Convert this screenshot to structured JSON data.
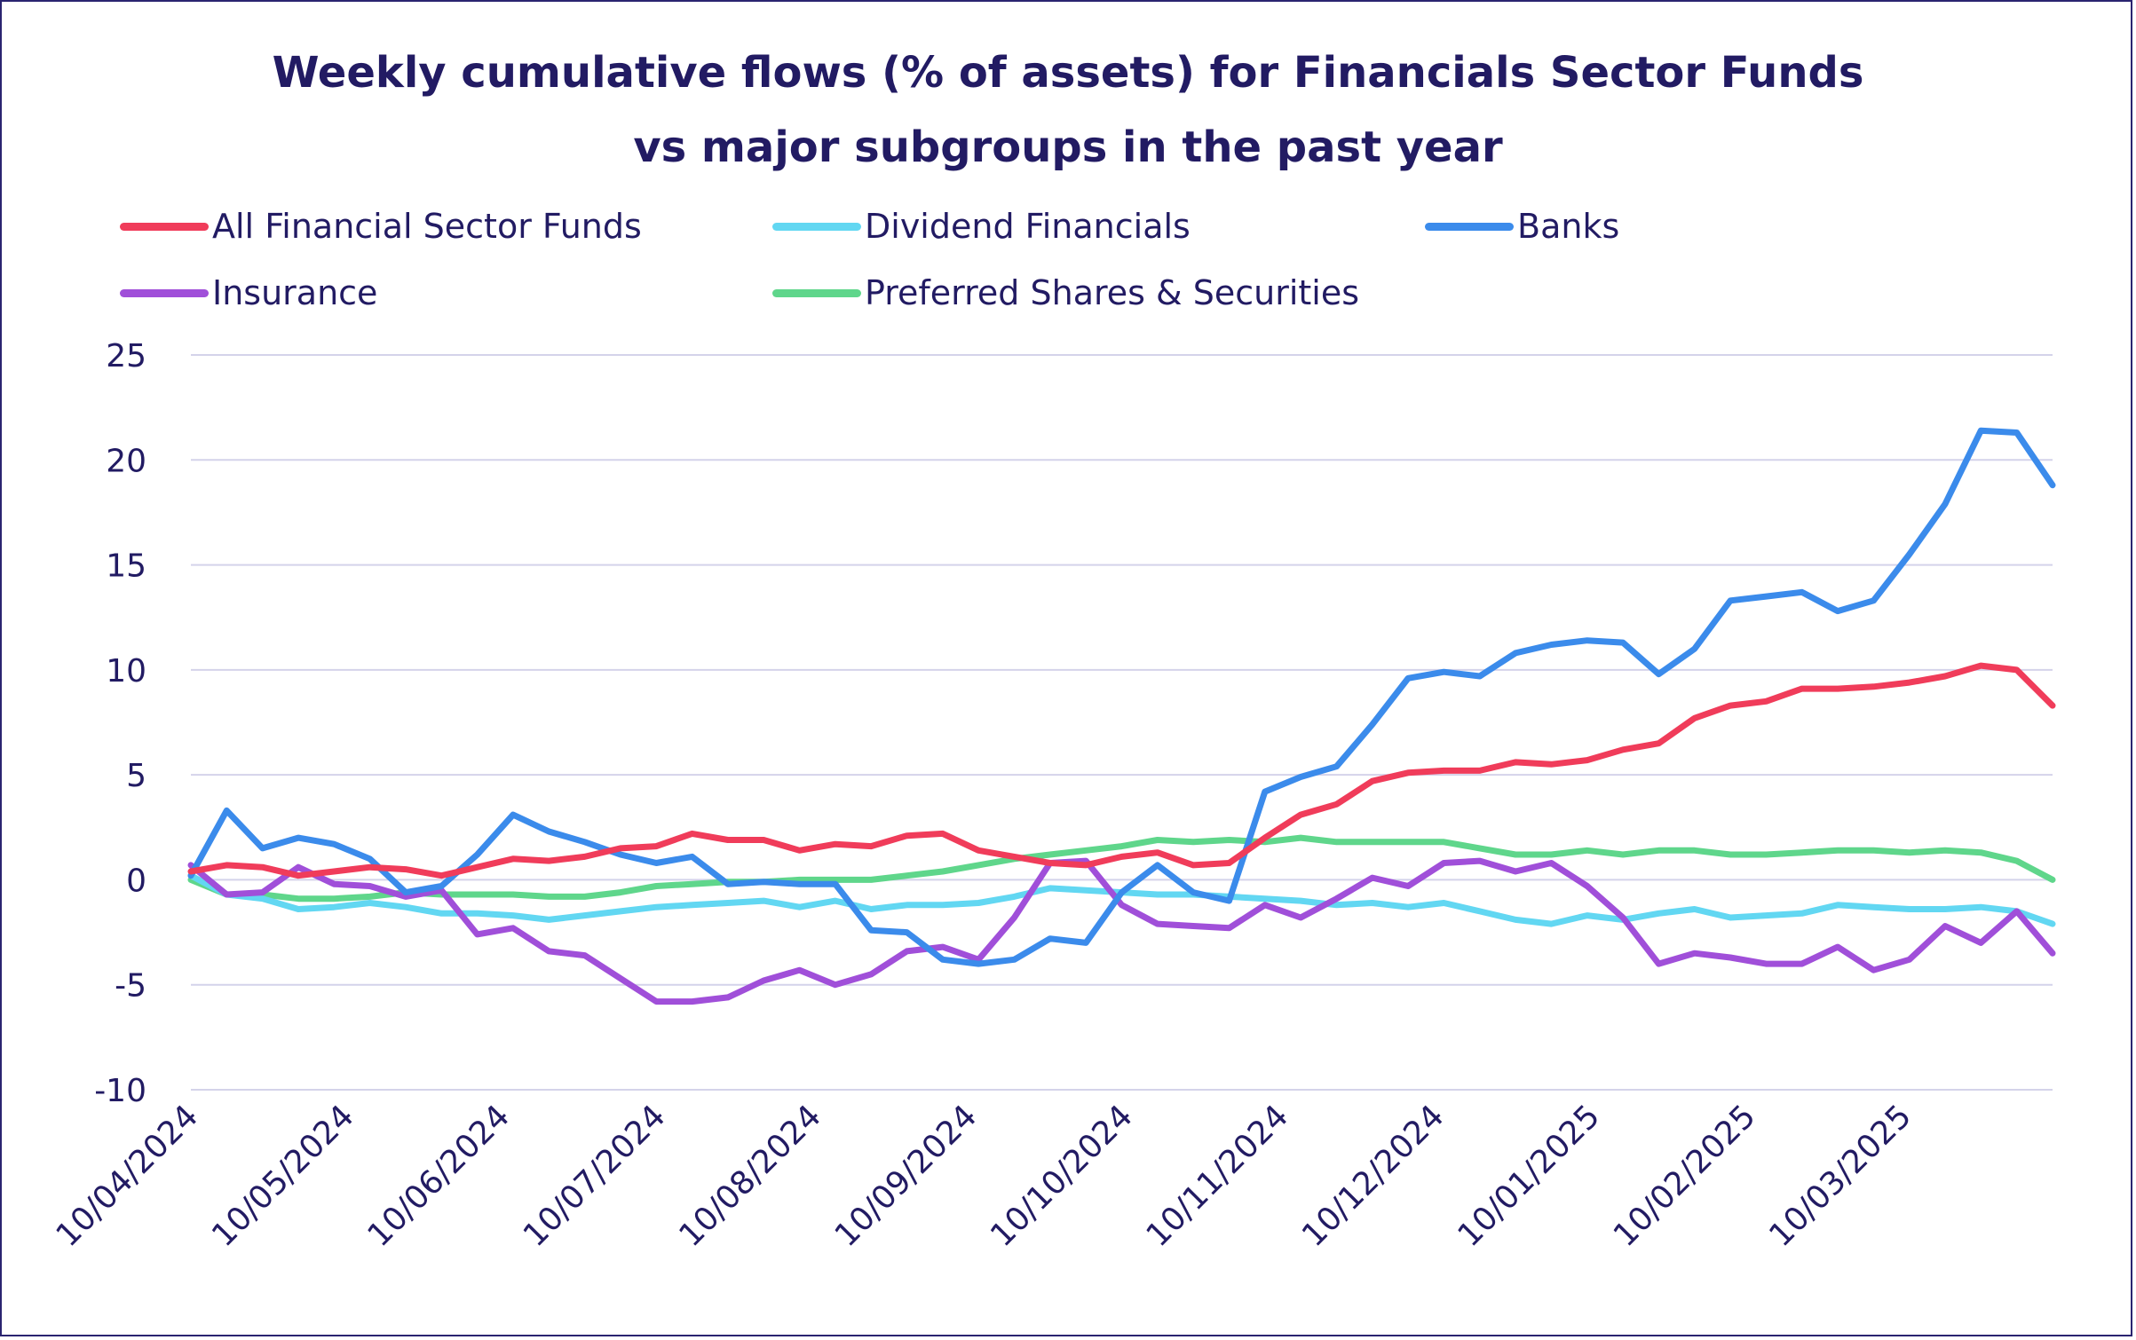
{
  "title_lines": [
    "Weekly cumulative flows (% of assets) for Financials Sector Funds",
    "vs  major subgroups in the past year"
  ],
  "chart_data": {
    "type": "line",
    "title": "Weekly cumulative flows (% of assets) for Financials Sector Funds vs  major subgroups in the past year",
    "xlabel": "",
    "ylabel": "",
    "ylim": [
      -10,
      25
    ],
    "yticks": [
      25,
      20,
      15,
      10,
      5,
      0,
      -5,
      -10
    ],
    "xtick_labels": [
      "10/04/2024",
      "10/05/2024",
      "10/06/2024",
      "10/07/2024",
      "10/08/2024",
      "10/09/2024",
      "10/10/2024",
      "10/11/2024",
      "10/12/2024",
      "10/01/2025",
      "10/02/2025",
      "10/03/2025"
    ],
    "grid": true,
    "legend_position": "top",
    "series": [
      {
        "name": "All Financial Sector Funds",
        "color": "#f03c5a",
        "values": [
          0.4,
          0.7,
          0.6,
          0.2,
          0.4,
          0.6,
          0.5,
          0.2,
          0.6,
          1.0,
          0.9,
          1.1,
          1.5,
          1.6,
          2.2,
          1.9,
          1.9,
          1.4,
          1.7,
          1.6,
          2.1,
          2.2,
          1.4,
          1.1,
          0.8,
          0.7,
          1.1,
          1.3,
          0.7,
          0.8,
          2.0,
          3.1,
          3.6,
          4.7,
          5.1,
          5.2,
          5.2,
          5.6,
          5.5,
          5.7,
          6.2,
          6.5,
          7.7,
          8.3,
          8.5,
          9.1,
          9.1,
          9.2,
          9.4,
          9.7,
          10.2,
          10.0,
          8.3
        ]
      },
      {
        "name": "Dividend Financials",
        "color": "#62d7f2",
        "values": [
          0.2,
          -0.7,
          -0.9,
          -1.4,
          -1.3,
          -1.1,
          -1.3,
          -1.6,
          -1.6,
          -1.7,
          -1.9,
          -1.7,
          -1.5,
          -1.3,
          -1.2,
          -1.1,
          -1.0,
          -1.3,
          -1.0,
          -1.4,
          -1.2,
          -1.2,
          -1.1,
          -0.8,
          -0.4,
          -0.5,
          -0.6,
          -0.7,
          -0.7,
          -0.8,
          -0.9,
          -1.0,
          -1.2,
          -1.1,
          -1.3,
          -1.1,
          -1.5,
          -1.9,
          -2.1,
          -1.7,
          -1.9,
          -1.6,
          -1.4,
          -1.8,
          -1.7,
          -1.6,
          -1.2,
          -1.3,
          -1.4,
          -1.4,
          -1.3,
          -1.5,
          -2.1
        ]
      },
      {
        "name": "Banks",
        "color": "#3b8beb",
        "values": [
          0.2,
          3.3,
          1.5,
          2.0,
          1.7,
          1.0,
          -0.6,
          -0.3,
          1.2,
          3.1,
          2.3,
          1.8,
          1.2,
          0.8,
          1.1,
          -0.2,
          -0.1,
          -0.2,
          -0.2,
          -2.4,
          -2.5,
          -3.8,
          -4.0,
          -3.8,
          -2.8,
          -3.0,
          -0.6,
          0.7,
          -0.6,
          -1.0,
          4.2,
          4.9,
          5.4,
          7.4,
          9.6,
          9.9,
          9.7,
          10.8,
          11.2,
          11.4,
          11.3,
          9.8,
          11.0,
          13.3,
          13.5,
          13.7,
          12.8,
          13.3,
          15.5,
          17.9,
          21.4,
          21.3,
          18.8
        ]
      },
      {
        "name": "Insurance",
        "color": "#a04fd9",
        "values": [
          0.7,
          -0.7,
          -0.6,
          0.6,
          -0.2,
          -0.3,
          -0.8,
          -0.5,
          -2.6,
          -2.3,
          -3.4,
          -3.6,
          -4.7,
          -5.8,
          -5.8,
          -5.6,
          -4.8,
          -4.3,
          -5.0,
          -4.5,
          -3.4,
          -3.2,
          -3.8,
          -1.8,
          0.8,
          0.9,
          -1.2,
          -2.1,
          -2.2,
          -2.3,
          -1.2,
          -1.8,
          -0.9,
          0.1,
          -0.3,
          0.8,
          0.9,
          0.4,
          0.8,
          -0.3,
          -1.8,
          -4.0,
          -3.5,
          -3.7,
          -4.0,
          -4.0,
          -3.2,
          -4.3,
          -3.8,
          -2.2,
          -3.0,
          -1.5,
          -3.5
        ]
      },
      {
        "name": "Preferred Shares & Securities",
        "color": "#5fd68b",
        "values": [
          0.0,
          -0.7,
          -0.7,
          -0.9,
          -0.9,
          -0.8,
          -0.6,
          -0.7,
          -0.7,
          -0.7,
          -0.8,
          -0.8,
          -0.6,
          -0.3,
          -0.2,
          -0.1,
          -0.1,
          0.0,
          0.0,
          0.0,
          0.2,
          0.4,
          0.7,
          1.0,
          1.2,
          1.4,
          1.6,
          1.9,
          1.8,
          1.9,
          1.8,
          2.0,
          1.8,
          1.8,
          1.8,
          1.8,
          1.5,
          1.2,
          1.2,
          1.4,
          1.2,
          1.4,
          1.4,
          1.2,
          1.2,
          1.3,
          1.4,
          1.4,
          1.3,
          1.4,
          1.3,
          0.9,
          0.0
        ]
      }
    ]
  }
}
